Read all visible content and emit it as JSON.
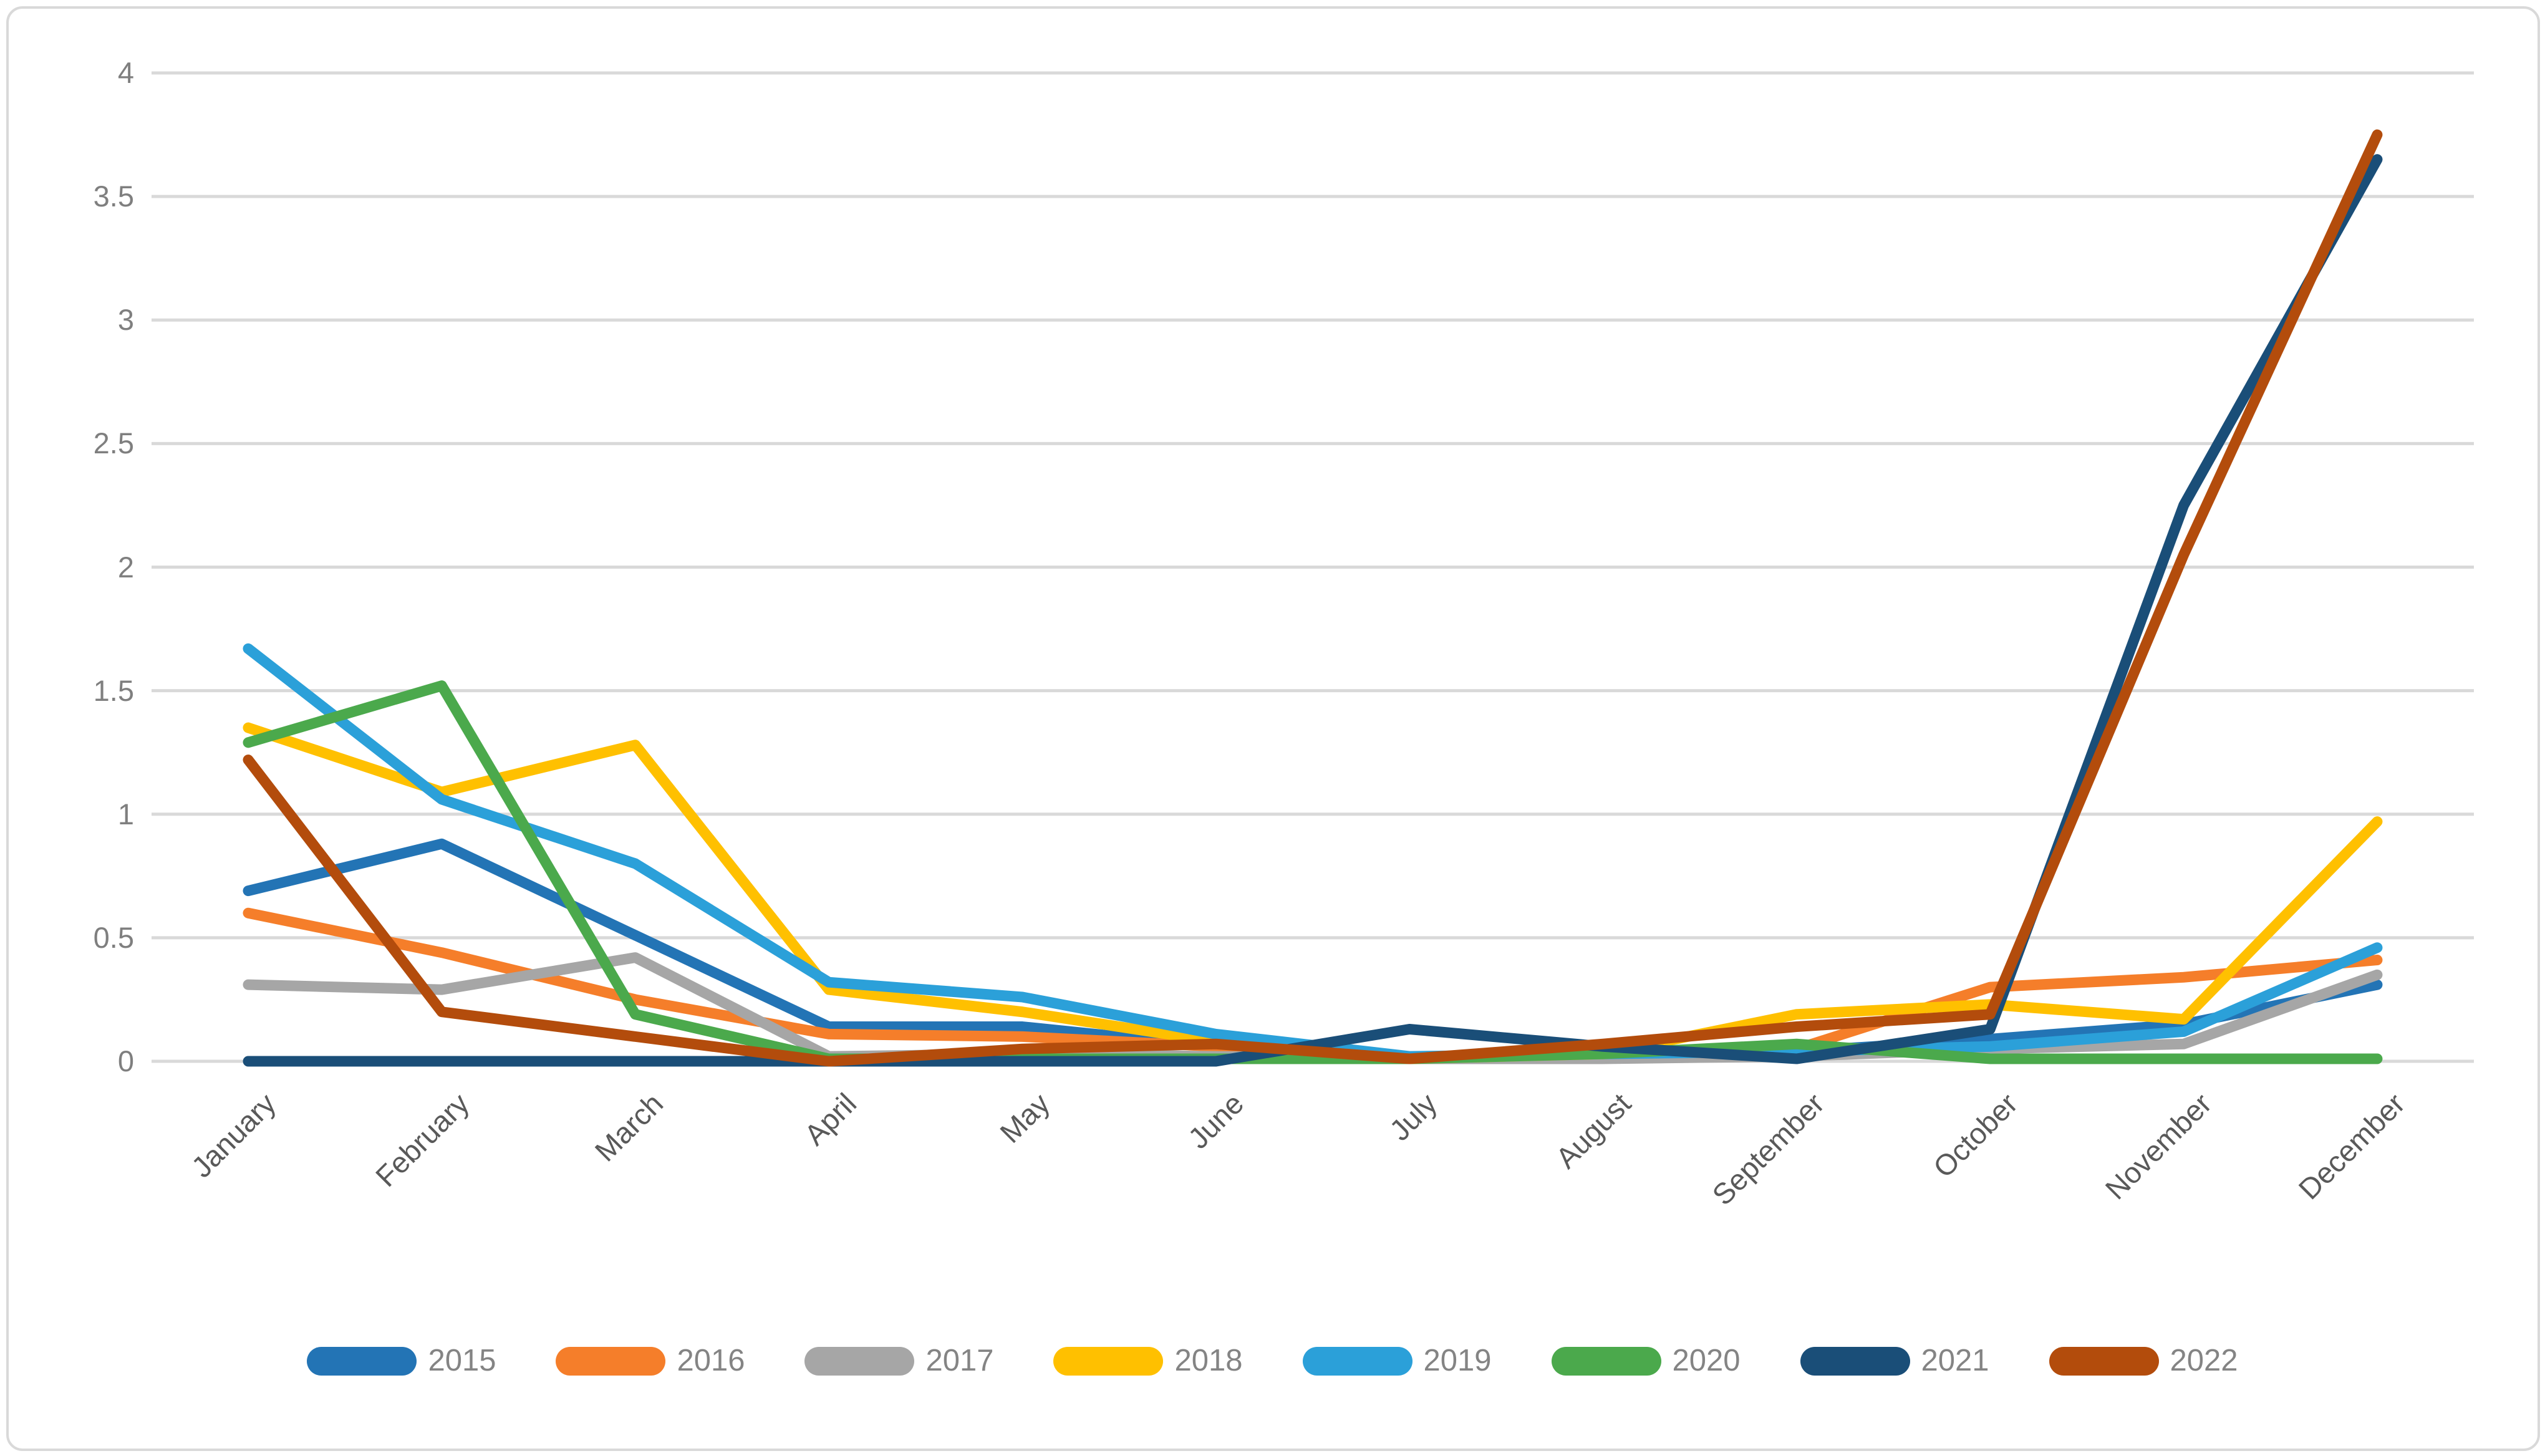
{
  "chart_data": {
    "type": "line",
    "title": "",
    "xlabel": "",
    "ylabel": "",
    "categories": [
      "January",
      "February",
      "March",
      "April",
      "May",
      "June",
      "July",
      "August",
      "September",
      "October",
      "November",
      "December"
    ],
    "series": [
      {
        "name": "2015",
        "color": "#2374B5",
        "values": [
          0.69,
          0.88,
          0.51,
          0.14,
          0.14,
          0.06,
          0.01,
          0.03,
          0.04,
          0.09,
          0.15,
          0.31
        ]
      },
      {
        "name": "2016",
        "color": "#F57E2A",
        "values": [
          0.6,
          0.44,
          0.25,
          0.11,
          0.1,
          0.06,
          0.01,
          0.04,
          0.05,
          0.3,
          0.34,
          0.41
        ]
      },
      {
        "name": "2017",
        "color": "#A6A6A6",
        "values": [
          0.31,
          0.29,
          0.42,
          0.02,
          0.03,
          0.02,
          0.01,
          0.01,
          0.02,
          0.05,
          0.07,
          0.35
        ]
      },
      {
        "name": "2018",
        "color": "#FFC000",
        "values": [
          1.35,
          1.09,
          1.28,
          0.29,
          0.2,
          0.08,
          0.01,
          0.03,
          0.19,
          0.23,
          0.17,
          0.97
        ]
      },
      {
        "name": "2019",
        "color": "#2BA0D9",
        "values": [
          1.67,
          1.06,
          0.8,
          0.32,
          0.26,
          0.11,
          0.02,
          0.03,
          0.04,
          0.06,
          0.12,
          0.46
        ]
      },
      {
        "name": "2020",
        "color": "#4BA94C",
        "values": [
          1.29,
          1.52,
          0.19,
          0.01,
          0.01,
          0.01,
          0.01,
          0.03,
          0.07,
          0.01,
          0.01,
          0.01
        ]
      },
      {
        "name": "2021",
        "color": "#1A4E78",
        "values": [
          0.0,
          0.0,
          0.0,
          0.0,
          0.0,
          0.0,
          0.13,
          0.06,
          0.01,
          0.13,
          2.25,
          3.65
        ]
      },
      {
        "name": "2022",
        "color": "#B34C0C",
        "values": [
          1.22,
          0.2,
          0.1,
          0.0,
          0.05,
          0.07,
          0.01,
          0.07,
          0.14,
          0.19,
          2.05,
          3.75
        ]
      }
    ],
    "y_ticks": [
      0,
      0.5,
      1,
      1.5,
      2,
      2.5,
      3,
      3.5,
      4
    ],
    "ylim": [
      0,
      4
    ],
    "grid": true,
    "legend_position": "bottom",
    "colors": {
      "gridline": "#D9D9D9",
      "y_axis_text": "#7F7F7F",
      "x_axis_text": "#595959",
      "legend_text": "#848484",
      "background": "#FFFFFF",
      "border": "#D9D9D9"
    }
  }
}
